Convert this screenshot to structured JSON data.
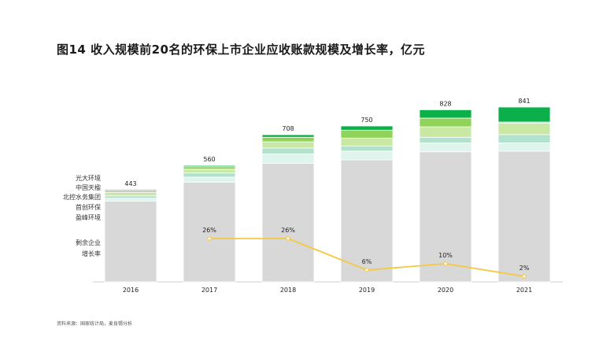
{
  "title": "图14 收入规模前20名的环保上市企业应收账款规模及增长率，亿元",
  "source": "资料来源：国家统计局，麦肯锡分析",
  "chart_data": {
    "type": "bar",
    "stacked": true,
    "categories": [
      "2016",
      "2017",
      "2018",
      "2019",
      "2020",
      "2021"
    ],
    "totals": [
      443,
      560,
      708,
      750,
      828,
      841
    ],
    "series": [
      {
        "name": "光大环境",
        "color": "#0bb04b",
        "values": [
          5,
          6,
          12,
          20,
          40,
          72
        ]
      },
      {
        "name": "中国天楹",
        "color": "#8fd35a",
        "values": [
          8,
          12,
          22,
          38,
          42,
          5
        ]
      },
      {
        "name": "北控水务集团",
        "color": "#c9e8a3",
        "values": [
          16,
          18,
          30,
          38,
          50,
          55
        ]
      },
      {
        "name": "首创环保",
        "color": "#b3e2cc",
        "values": [
          12,
          20,
          28,
          25,
          28,
          40
        ]
      },
      {
        "name": "盈峰环境",
        "color": "#dff4ec",
        "values": [
          14,
          24,
          46,
          42,
          42,
          40
        ]
      },
      {
        "name": "剩余企业",
        "color": "#d8d8d8",
        "values": [
          388,
          480,
          570,
          587,
          626,
          629
        ]
      }
    ],
    "growth_rate": {
      "name": "增长率",
      "color": "#f5c842",
      "labels": [
        "",
        "26%",
        "26%",
        "6%",
        "10%",
        "2%"
      ],
      "values": [
        null,
        26,
        26,
        6,
        10,
        2
      ]
    },
    "ylim": [
      0,
      900
    ]
  }
}
